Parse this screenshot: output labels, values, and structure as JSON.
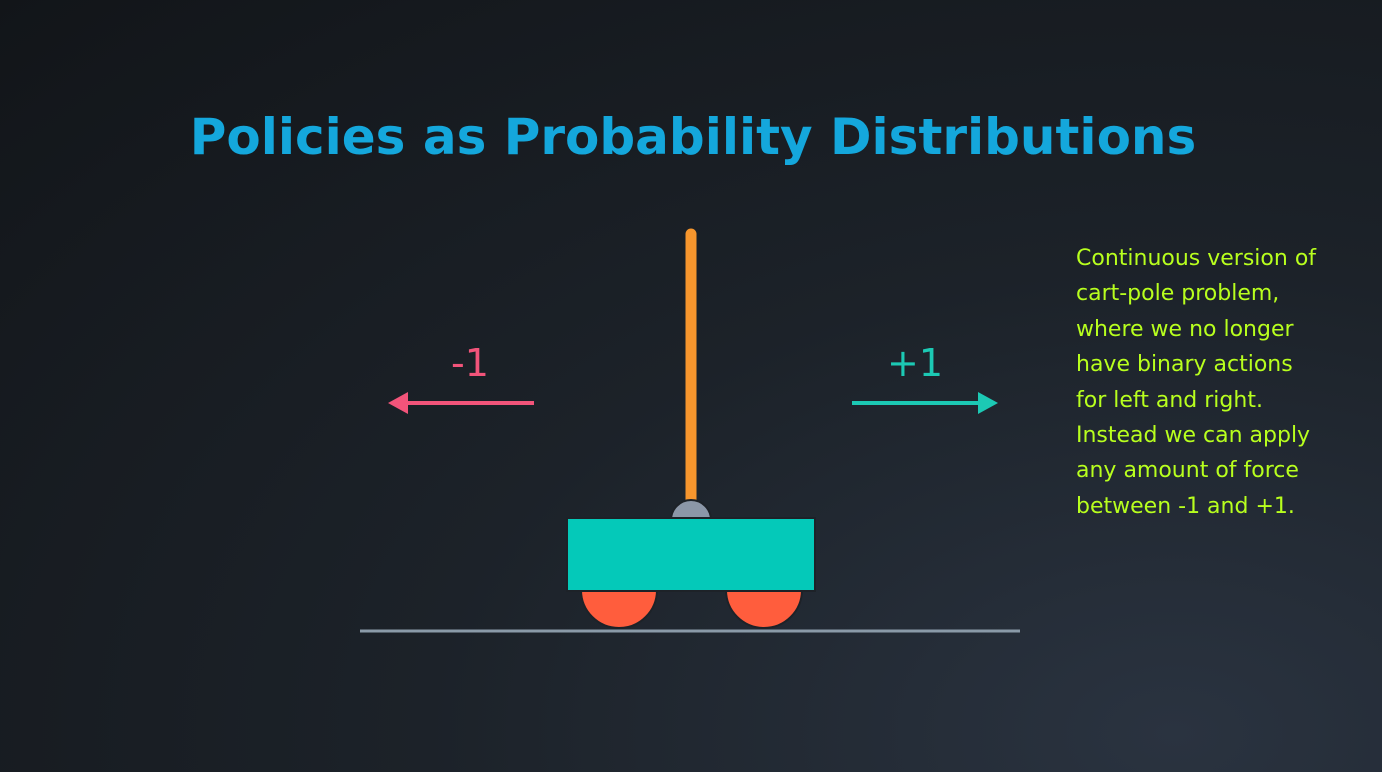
{
  "slide": {
    "title": "Policies as Probability Distributions"
  },
  "diagram": {
    "left_label": "-1",
    "right_label": "+1"
  },
  "note": {
    "lines": [
      "Continuous version of",
      "cart-pole problem,",
      "where we no longer",
      "have binary actions",
      "for left and right.",
      "Instead we can apply",
      "any amount of force",
      "between -1 and +1."
    ]
  },
  "colors": {
    "title": "#14a7dc",
    "left_arrow": "#f2547a",
    "right_arrow": "#1cc9b4",
    "pole": "#f7962d",
    "cart": "#04c9b9",
    "wheels": "#ff5d3d",
    "pivot": "#8b97a8",
    "ground": "#8a9aa8",
    "note": "#b8ff1e"
  }
}
